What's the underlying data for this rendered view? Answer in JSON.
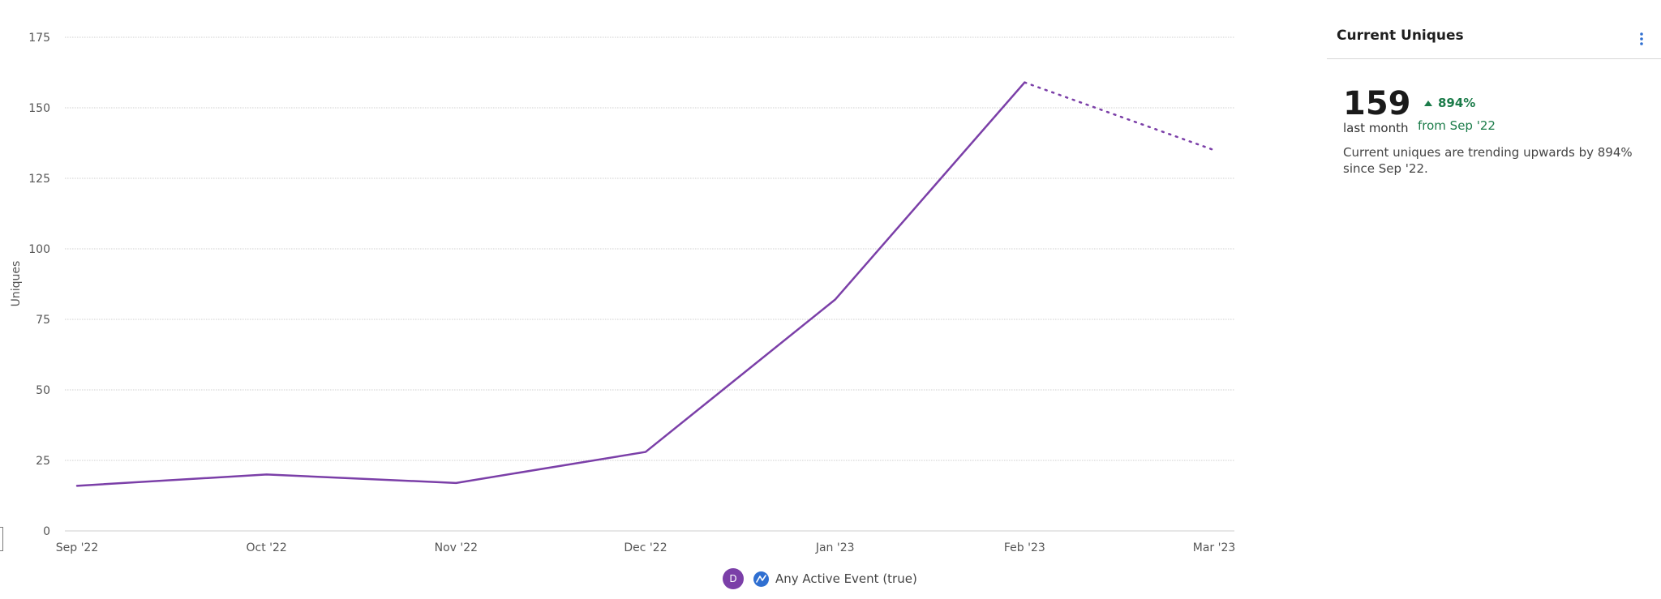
{
  "chart_data": {
    "type": "line",
    "categories": [
      "Sep '22",
      "Oct '22",
      "Nov '22",
      "Dec '22",
      "Jan '23",
      "Feb '23",
      "Mar '23"
    ],
    "series": [
      {
        "name": "Any Active Event (true)",
        "values": [
          16,
          20,
          17,
          28,
          82,
          159,
          135
        ],
        "incomplete_from_index": 5,
        "color": "#7b3fa8"
      }
    ],
    "title": "",
    "xlabel": "",
    "ylabel": "Uniques",
    "ylim": [
      0,
      175
    ],
    "yticks": [
      0,
      25,
      50,
      75,
      100,
      125,
      150,
      175
    ],
    "grid": true,
    "gridline_style": "dotted",
    "legend_position": "bottom-center"
  },
  "legend": {
    "avatar_letter": "D",
    "event_icon": "event-segmentation-icon",
    "label": "Any Active Event (true)"
  },
  "panel": {
    "title": "Current Uniques",
    "menu_icon": "vertical-ellipsis-icon",
    "metric_value": "159",
    "metric_period": "last month",
    "change_arrow_icon": "triangle-up-icon",
    "change_percent": "894%",
    "change_from": "from Sep '22",
    "summary": "Current uniques are trending upwards by 894% since Sep '22.",
    "positive_color": "#1c7c4a"
  }
}
